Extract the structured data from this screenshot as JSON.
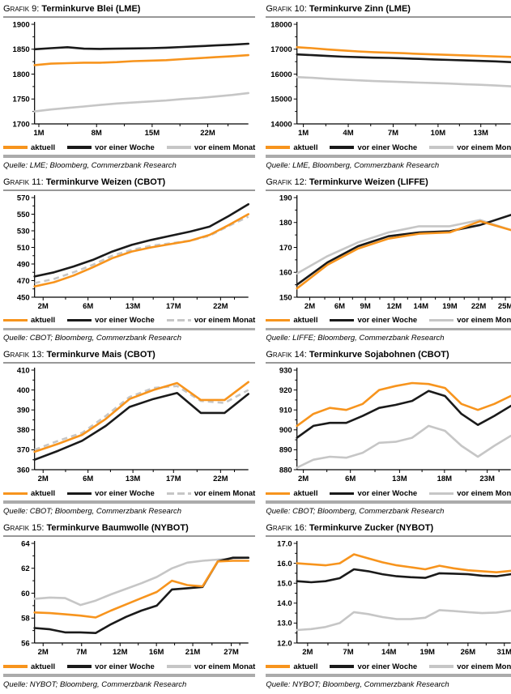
{
  "page": {
    "background": "#FFFFFF"
  },
  "legend": {
    "aktuell": "aktuell",
    "woche": "vor einer Woche",
    "monat": "vor einem Monat"
  },
  "colors": {
    "aktuell": "#F7941D",
    "woche": "#1A1A1A",
    "monat": "#C6C6C6",
    "axis": "#000000",
    "title_rule": "#989898",
    "footer_rule": "#ABABAB"
  },
  "chart_data": [
    {
      "type": "line",
      "label": "Grafik 9:",
      "title": "Terminkurve Blei (LME)",
      "source": "Quelle: LME; Bloomberg, Commerzbank Research",
      "ylim": [
        1700,
        1900
      ],
      "y_step": 50,
      "y_decimals": 0,
      "x_ticks": [
        {
          "label": "1M",
          "pos": 0.02
        },
        {
          "label": "8M",
          "pos": 0.29
        },
        {
          "label": "15M",
          "pos": 0.55
        },
        {
          "label": "22M",
          "pos": 0.81
        }
      ],
      "monat_dashed": false,
      "series": [
        {
          "name": "aktuell",
          "values": [
            1818,
            1821,
            1822,
            1823,
            1823,
            1824,
            1826,
            1827,
            1828,
            1830,
            1832,
            1834,
            1836,
            1838
          ]
        },
        {
          "name": "vor einer Woche",
          "values": [
            1850,
            1852,
            1854,
            1851,
            1850.5,
            1851,
            1851.5,
            1852,
            1853,
            1854.5,
            1856,
            1857.5,
            1859,
            1861
          ]
        },
        {
          "name": "vor einem Monat",
          "values": [
            1725,
            1729,
            1732,
            1735,
            1738,
            1741,
            1743,
            1745,
            1747,
            1750,
            1752,
            1755,
            1758,
            1762
          ]
        }
      ]
    },
    {
      "type": "line",
      "label": "Grafik 10:",
      "title": "Terminkurve Zinn (LME)",
      "source": "Quelle: LME, Bloomberg, Commerzbank Research",
      "ylim": [
        14000,
        18000
      ],
      "y_step": 1000,
      "y_decimals": 0,
      "x_ticks": [
        {
          "label": "1M",
          "pos": 0.03
        },
        {
          "label": "4M",
          "pos": 0.24
        },
        {
          "label": "7M",
          "pos": 0.45
        },
        {
          "label": "10M",
          "pos": 0.66
        },
        {
          "label": "13M",
          "pos": 0.86
        }
      ],
      "monat_dashed": false,
      "series": [
        {
          "name": "aktuell",
          "values": [
            17080,
            17040,
            16990,
            16950,
            16910,
            16880,
            16860,
            16840,
            16810,
            16790,
            16770,
            16750,
            16730,
            16710,
            16690
          ]
        },
        {
          "name": "vor einer Woche",
          "values": [
            16790,
            16760,
            16730,
            16700,
            16680,
            16660,
            16650,
            16630,
            16610,
            16590,
            16570,
            16550,
            16530,
            16510,
            16480
          ]
        },
        {
          "name": "vor einem Monat",
          "values": [
            15880,
            15850,
            15810,
            15780,
            15750,
            15720,
            15700,
            15680,
            15660,
            15640,
            15620,
            15590,
            15570,
            15540,
            15510
          ]
        }
      ]
    },
    {
      "type": "line",
      "label": "Grafik 11:",
      "title": "Terminkurve Weizen (CBOT)",
      "source": "Quelle: CBOT; Bloomberg, Commerzbank Research",
      "ylim": [
        450,
        570
      ],
      "y_step": 20,
      "y_decimals": 0,
      "x_ticks": [
        {
          "label": "2M",
          "pos": 0.04
        },
        {
          "label": "6M",
          "pos": 0.25
        },
        {
          "label": "13M",
          "pos": 0.46
        },
        {
          "label": "17M",
          "pos": 0.65
        },
        {
          "label": "22M",
          "pos": 0.87
        }
      ],
      "monat_dashed": true,
      "series": [
        {
          "name": "aktuell",
          "values": [
            463,
            468,
            476,
            486,
            497,
            505,
            510,
            514,
            518,
            525,
            537,
            550
          ]
        },
        {
          "name": "vor einer Woche",
          "values": [
            475,
            480,
            487,
            495,
            505,
            513,
            519,
            524,
            529,
            535,
            548,
            562
          ]
        },
        {
          "name": "vor einem Monat",
          "values": [
            467,
            472,
            480,
            489,
            500,
            507,
            512,
            515,
            518,
            524,
            536,
            547
          ]
        }
      ]
    },
    {
      "type": "line",
      "label": "Grafik 12:",
      "title": "Terminkurve Weizen (LIFFE)",
      "source": "Quelle: LIFFE; Bloomberg, Commerzbank Research",
      "ylim": [
        150,
        190
      ],
      "y_step": 10,
      "y_decimals": 0,
      "x_ticks": [
        {
          "label": "2M",
          "pos": 0.06
        },
        {
          "label": "6M",
          "pos": 0.2
        },
        {
          "label": "9M",
          "pos": 0.32
        },
        {
          "label": "12M",
          "pos": 0.455
        },
        {
          "label": "14M",
          "pos": 0.58
        },
        {
          "label": "19M",
          "pos": 0.715
        },
        {
          "label": "22M",
          "pos": 0.85
        },
        {
          "label": "25M",
          "pos": 0.975
        }
      ],
      "monat_dashed": false,
      "series": [
        {
          "name": "aktuell",
          "values": [
            153.5,
            163,
            169.5,
            173.5,
            175.5,
            176,
            180.5,
            177
          ]
        },
        {
          "name": "vor einer Woche",
          "values": [
            155,
            164,
            170.5,
            174.5,
            176,
            176.5,
            179,
            183
          ]
        },
        {
          "name": "vor einem Monat",
          "values": [
            159.5,
            166.5,
            172,
            176,
            178.5,
            178.5,
            181,
            177
          ]
        }
      ]
    },
    {
      "type": "line",
      "label": "Grafik 13:",
      "title": "Terminkurve Mais (CBOT)",
      "source": "Quelle: CBOT; Bloomberg, Commerzbank Research",
      "ylim": [
        360,
        410
      ],
      "y_step": 10,
      "y_decimals": 0,
      "x_ticks": [
        {
          "label": "2M",
          "pos": 0.04
        },
        {
          "label": "6M",
          "pos": 0.25
        },
        {
          "label": "13M",
          "pos": 0.46
        },
        {
          "label": "17M",
          "pos": 0.65
        },
        {
          "label": "22M",
          "pos": 0.87
        }
      ],
      "monat_dashed": true,
      "series": [
        {
          "name": "aktuell",
          "values": [
            369,
            373,
            377.5,
            385.5,
            395.5,
            400,
            403.5,
            395,
            395,
            404
          ]
        },
        {
          "name": "vor einer Woche",
          "values": [
            365,
            369.5,
            374.5,
            382,
            391.5,
            395.5,
            398.5,
            388.5,
            388.5,
            398
          ]
        },
        {
          "name": "vor einem Monat",
          "values": [
            370,
            374.5,
            378.5,
            387,
            396.5,
            401,
            402,
            394.5,
            393.5,
            400
          ]
        }
      ]
    },
    {
      "type": "line",
      "label": "Grafik 14:",
      "title": "Terminkurve Sojabohnen (CBOT)",
      "source": "Quelle: CBOT; Bloomberg, Commerzbank Research",
      "ylim": [
        880,
        930
      ],
      "y_step": 10,
      "y_decimals": 0,
      "x_ticks": [
        {
          "label": "2M",
          "pos": 0.03
        },
        {
          "label": "6M",
          "pos": 0.25
        },
        {
          "label": "13M",
          "pos": 0.48
        },
        {
          "label": "18M",
          "pos": 0.69
        },
        {
          "label": "23M",
          "pos": 0.89
        }
      ],
      "monat_dashed": false,
      "series": [
        {
          "name": "aktuell",
          "values": [
            902,
            908,
            911,
            910,
            913,
            920,
            922,
            923.5,
            923,
            921,
            913,
            910,
            913,
            917
          ]
        },
        {
          "name": "vor einer Woche",
          "values": [
            896,
            902,
            903.5,
            903.5,
            907,
            911,
            912.5,
            914.5,
            919.5,
            917,
            908,
            902.5,
            907,
            912
          ]
        },
        {
          "name": "vor einem Monat",
          "values": [
            881,
            885,
            886.5,
            886,
            888.5,
            893.5,
            894,
            896,
            902,
            899.5,
            892,
            886.5,
            892,
            897
          ]
        }
      ]
    },
    {
      "type": "line",
      "label": "Grafik 15:",
      "title": "Terminkurve Baumwolle (NYBOT)",
      "source": "Quelle: NYBOT; Bloomberg, Commerzbank Research",
      "ylim": [
        56,
        64
      ],
      "y_step": 2,
      "y_decimals": 0,
      "x_ticks": [
        {
          "label": "2M",
          "pos": 0.04
        },
        {
          "label": "7M",
          "pos": 0.22
        },
        {
          "label": "12M",
          "pos": 0.4
        },
        {
          "label": "16M",
          "pos": 0.57
        },
        {
          "label": "21M",
          "pos": 0.74
        },
        {
          "label": "27M",
          "pos": 0.92
        }
      ],
      "monat_dashed": false,
      "series": [
        {
          "name": "aktuell",
          "values": [
            58.45,
            58.4,
            58.3,
            58.2,
            58.05,
            58.6,
            59.1,
            59.6,
            60.1,
            61.0,
            60.65,
            60.55,
            62.55,
            62.6,
            62.6
          ]
        },
        {
          "name": "vor einer Woche",
          "values": [
            57.2,
            57.1,
            56.85,
            56.85,
            56.8,
            57.5,
            58.1,
            58.6,
            59.0,
            60.3,
            60.4,
            60.5,
            62.55,
            62.85,
            62.85
          ]
        },
        {
          "name": "vor einem Monat",
          "values": [
            59.55,
            59.65,
            59.6,
            59.05,
            59.4,
            59.9,
            60.35,
            60.8,
            61.3,
            62.0,
            62.45,
            62.6,
            62.7,
            62.8,
            62.85
          ]
        }
      ]
    },
    {
      "type": "line",
      "label": "Grafik 16:",
      "title": "Terminkurve Zucker (NYBOT)",
      "source": "Quelle: NYBOT; Bloomberg, Commerzbank Research",
      "ylim": [
        12.0,
        17.0
      ],
      "y_step": 1.0,
      "y_decimals": 1,
      "x_ticks": [
        {
          "label": "2M",
          "pos": 0.05
        },
        {
          "label": "7M",
          "pos": 0.24
        },
        {
          "label": "14M",
          "pos": 0.43
        },
        {
          "label": "19M",
          "pos": 0.61
        },
        {
          "label": "26M",
          "pos": 0.8
        },
        {
          "label": "31M",
          "pos": 0.97
        }
      ],
      "monat_dashed": false,
      "series": [
        {
          "name": "aktuell",
          "values": [
            16.0,
            15.95,
            15.9,
            16.0,
            16.45,
            16.25,
            16.05,
            15.9,
            15.8,
            15.7,
            15.88,
            15.75,
            15.65,
            15.6,
            15.55,
            15.62
          ]
        },
        {
          "name": "vor einer Woche",
          "values": [
            15.1,
            15.05,
            15.1,
            15.25,
            15.7,
            15.6,
            15.45,
            15.35,
            15.3,
            15.27,
            15.5,
            15.48,
            15.45,
            15.38,
            15.35,
            15.45
          ]
        },
        {
          "name": "vor einem Monat",
          "values": [
            12.65,
            12.7,
            12.8,
            13.0,
            13.55,
            13.45,
            13.3,
            13.2,
            13.2,
            13.27,
            13.65,
            13.6,
            13.55,
            13.5,
            13.53,
            13.62
          ]
        }
      ]
    }
  ]
}
